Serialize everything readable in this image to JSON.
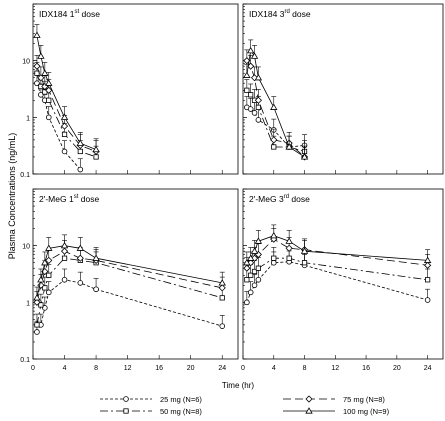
{
  "figure": {
    "y_label": "Plasma Concentrations (ng/mL)",
    "x_label": "Time (hr)"
  },
  "chart_data": [
    {
      "type": "line",
      "panel": "top-left",
      "title": {
        "main": "IDX184 1",
        "sup": "st",
        "tail": " dose"
      },
      "x_ticks": [],
      "y_ticks": [
        "0.1",
        "1",
        "10"
      ],
      "xlim": [
        0,
        26
      ],
      "ylim": [
        0.1,
        100
      ],
      "y_scale": "log",
      "series": [
        {
          "key": "s25",
          "x": [
            0.5,
            1,
            1.5,
            2,
            4,
            6
          ],
          "y": [
            4.0,
            2.5,
            2.0,
            1.0,
            0.25,
            0.12
          ]
        },
        {
          "key": "s50",
          "x": [
            0.5,
            1,
            1.5,
            2,
            4,
            6,
            8
          ],
          "y": [
            6.0,
            3.5,
            2.8,
            2.0,
            0.5,
            0.25,
            0.2
          ]
        },
        {
          "key": "s75",
          "x": [
            0.5,
            1,
            1.5,
            2,
            4,
            6,
            8
          ],
          "y": [
            8.0,
            5.0,
            3.5,
            3.0,
            0.7,
            0.32,
            0.25
          ]
        },
        {
          "key": "s100",
          "x": [
            0.5,
            1,
            1.5,
            2,
            4,
            6,
            8
          ],
          "y": [
            28.0,
            12.0,
            6.0,
            4.0,
            1.0,
            0.35,
            0.27
          ]
        }
      ]
    },
    {
      "type": "line",
      "panel": "top-right",
      "title": {
        "main": "IDX184 3",
        "sup": "rd",
        "tail": " dose"
      },
      "x_ticks": [],
      "y_ticks": [],
      "xlim": [
        0,
        26
      ],
      "ylim": [
        0.1,
        100
      ],
      "y_scale": "log",
      "series": [
        {
          "key": "s25",
          "x": [
            0.5,
            1,
            1.5,
            2,
            4,
            6,
            8
          ],
          "y": [
            1.5,
            1.4,
            1.2,
            0.9,
            0.6,
            0.3,
            0.32
          ]
        },
        {
          "key": "s50",
          "x": [
            0.5,
            1,
            1.5,
            2,
            4,
            6,
            8
          ],
          "y": [
            3.0,
            2.5,
            2.0,
            1.5,
            0.3,
            0.3,
            0.25
          ]
        },
        {
          "key": "s75",
          "x": [
            0.5,
            1,
            1.5,
            2,
            4,
            6,
            8
          ],
          "y": [
            10.0,
            8.0,
            5.0,
            2.0,
            0.4,
            0.35,
            0.2
          ]
        },
        {
          "key": "s100",
          "x": [
            0.5,
            1,
            1.5,
            2,
            4,
            6,
            8
          ],
          "y": [
            5.5,
            15.0,
            12.0,
            5.0,
            1.5,
            0.3,
            0.2
          ]
        }
      ]
    },
    {
      "type": "line",
      "panel": "bottom-left",
      "title": {
        "main": "2'-MeG 1",
        "sup": "st",
        "tail": " dose"
      },
      "x_ticks": [
        "0",
        "4",
        "8",
        "12",
        "16",
        "20",
        "24"
      ],
      "y_ticks": [
        "0.1",
        "1",
        "10"
      ],
      "xlim": [
        0,
        26
      ],
      "ylim": [
        0.1,
        100
      ],
      "y_scale": "log",
      "series": [
        {
          "key": "s25",
          "x": [
            0.5,
            1,
            1.5,
            2,
            4,
            6,
            8,
            24
          ],
          "y": [
            0.3,
            0.4,
            0.8,
            1.5,
            2.5,
            2.2,
            1.7,
            0.38
          ]
        },
        {
          "key": "s50",
          "x": [
            0.5,
            1,
            1.5,
            2,
            4,
            6,
            8,
            24
          ],
          "y": [
            0.4,
            0.9,
            1.8,
            3.0,
            6.0,
            5.5,
            5.0,
            1.2
          ]
        },
        {
          "key": "s75",
          "x": [
            0.5,
            1,
            1.5,
            2,
            4,
            6,
            8,
            24
          ],
          "y": [
            1.0,
            2.0,
            3.5,
            5.5,
            8.0,
            6.0,
            5.5,
            1.8
          ]
        },
        {
          "key": "s100",
          "x": [
            0.5,
            1,
            1.5,
            2,
            4,
            6,
            8,
            24
          ],
          "y": [
            1.2,
            2.5,
            5.0,
            9.0,
            10.0,
            9.0,
            6.0,
            2.2
          ]
        }
      ]
    },
    {
      "type": "line",
      "panel": "bottom-right",
      "title": {
        "main": "2'-MeG 3",
        "sup": "rd",
        "tail": " dose"
      },
      "x_ticks": [
        "0",
        "4",
        "8",
        "12",
        "16",
        "20",
        "24"
      ],
      "y_ticks": [],
      "xlim": [
        0,
        26
      ],
      "ylim": [
        0.1,
        100
      ],
      "y_scale": "log",
      "series": [
        {
          "key": "s25",
          "x": [
            0.5,
            1,
            1.5,
            2,
            4,
            6,
            8,
            24
          ],
          "y": [
            1.0,
            1.5,
            2.0,
            2.5,
            5.0,
            5.2,
            4.5,
            1.1
          ]
        },
        {
          "key": "s50",
          "x": [
            0.5,
            1,
            1.5,
            2,
            4,
            6,
            8,
            24
          ],
          "y": [
            2.5,
            3.0,
            3.5,
            4.0,
            6.0,
            6.0,
            5.0,
            2.5
          ]
        },
        {
          "key": "s75",
          "x": [
            0.5,
            1,
            1.5,
            2,
            4,
            6,
            8,
            24
          ],
          "y": [
            4.0,
            5.0,
            6.0,
            7.0,
            13.0,
            9.0,
            8.5,
            4.5
          ]
        },
        {
          "key": "s100",
          "x": [
            0.5,
            1,
            1.5,
            2,
            4,
            6,
            8,
            24
          ],
          "y": [
            5.0,
            6.0,
            8.0,
            12.0,
            15.0,
            12.0,
            8.0,
            5.5
          ]
        }
      ]
    }
  ],
  "legend": {
    "placement": "bottom",
    "entries": [
      {
        "key": "s25",
        "label": "25 mg (N=6)",
        "marker": "circle",
        "dash": "3,2"
      },
      {
        "key": "s75",
        "label": "75 mg (N=8)",
        "marker": "diamond",
        "dash": "8,4"
      },
      {
        "key": "s50",
        "label": "50 mg (N=8)",
        "marker": "square",
        "dash": "8,3,2,3"
      },
      {
        "key": "s100",
        "label": "100 mg (N=9)",
        "marker": "triangle",
        "dash": ""
      }
    ]
  }
}
